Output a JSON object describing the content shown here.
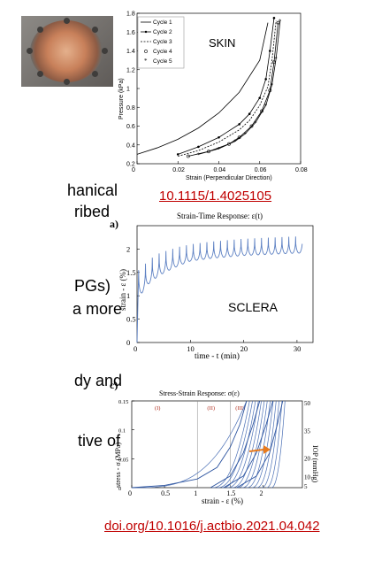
{
  "left_text": [
    "hanical",
    "ribed",
    "PGs)",
    "a more",
    "dy and",
    "tive of"
  ],
  "skin_chart": {
    "label": "SKIN",
    "xlabel": "Strain (Perpendicular Direction)",
    "ylabel": "Pressure (kPa)",
    "xticks": [
      "0",
      "0.02",
      "0.04",
      "0.06",
      "0.08"
    ],
    "yticks": [
      "0.2",
      "0.4",
      "0.6",
      "0.8",
      "1",
      "1.2",
      "1.4",
      "1.6",
      "1.8"
    ],
    "legend": [
      "Cycle 1",
      "Cycle 2",
      "Cycle 3",
      "Cycle 4",
      "Cycle 5"
    ],
    "doi": "10.1115/1.4025105"
  },
  "sclera_a": {
    "panel": "a)",
    "title": "Strain-Time Response: ε(t)",
    "label": "SCLERA",
    "ylabel": "strain - ε (%)",
    "xlabel": "time - t (min)",
    "xticks": [
      "0",
      "10",
      "20",
      "30"
    ],
    "yticks": [
      "0",
      "0.5",
      "1",
      "1.5",
      "2"
    ]
  },
  "sclera_c": {
    "panel": "c)",
    "title": "Stress-Strain Response: σ(ε)",
    "ylabel": "stress - σ (MPa)",
    "xlabel": "strain - ε (%)",
    "y2label": "IOP (mmHg)",
    "xticks": [
      "0",
      "0.5",
      "1",
      "1.5",
      "2"
    ],
    "yticks": [
      "0",
      "0.05",
      "0.1",
      "0.15"
    ],
    "y2ticks": [
      "5",
      "10",
      "20",
      "35",
      "50"
    ],
    "regions": [
      "(I)",
      "(II)",
      "(III)"
    ],
    "doi": "doi.org/10.1016/j.actbio.2021.04.042"
  },
  "chart_data": [
    {
      "type": "line",
      "xlim": [
        0,
        0.08
      ],
      "ylim": [
        0.2,
        1.8
      ],
      "series": [
        {
          "name": "Cycle 1",
          "x": [
            0,
            0.01,
            0.02,
            0.03,
            0.04,
            0.05,
            0.06,
            0.064
          ],
          "y": [
            0.3,
            0.37,
            0.46,
            0.58,
            0.74,
            0.96,
            1.3,
            1.7
          ]
        },
        {
          "name": "Cycle 2",
          "x": [
            0.02,
            0.03,
            0.04,
            0.05,
            0.055,
            0.06,
            0.063,
            0.065,
            0.067
          ],
          "y": [
            0.3,
            0.38,
            0.48,
            0.62,
            0.73,
            0.9,
            1.1,
            1.4,
            1.75
          ]
        },
        {
          "name": "Cycle 3",
          "x": [
            0.02,
            0.03,
            0.04,
            0.05,
            0.055,
            0.06,
            0.064,
            0.066,
            0.068
          ],
          "y": [
            0.28,
            0.34,
            0.43,
            0.56,
            0.66,
            0.82,
            1.02,
            1.3,
            1.72
          ]
        },
        {
          "name": "Cycle 4",
          "x": [
            0.025,
            0.035,
            0.045,
            0.05,
            0.056,
            0.061,
            0.065,
            0.067,
            0.069
          ],
          "y": [
            0.28,
            0.33,
            0.41,
            0.48,
            0.6,
            0.76,
            0.98,
            1.28,
            1.7
          ]
        },
        {
          "name": "Cycle 5",
          "x": [
            0.03,
            0.04,
            0.048,
            0.053,
            0.058,
            0.063,
            0.066,
            0.068,
            0.07
          ],
          "y": [
            0.3,
            0.36,
            0.44,
            0.52,
            0.64,
            0.82,
            1.04,
            1.32,
            1.72
          ]
        }
      ]
    },
    {
      "type": "line",
      "xlim": [
        0,
        33
      ],
      "ylim": [
        0,
        2.5
      ],
      "series": [
        {
          "name": "",
          "x": [
            0,
            0.3,
            1,
            2,
            4,
            6,
            8,
            10,
            12,
            14,
            16,
            18,
            20,
            22,
            24,
            26,
            28,
            30,
            31
          ],
          "y": [
            0,
            1.55,
            1.6,
            1.75,
            1.9,
            1.98,
            2.05,
            2.1,
            2.13,
            2.16,
            2.18,
            2.2,
            2.22,
            2.23,
            2.24,
            2.25,
            2.26,
            2.27,
            2.27
          ]
        }
      ]
    },
    {
      "type": "line",
      "xlim": [
        0,
        2.6
      ],
      "ylim": [
        0,
        0.15
      ],
      "series": [
        {
          "name": "",
          "x": [
            0,
            0.5,
            1.0,
            1.3,
            1.5,
            1.65,
            1.75
          ],
          "y": [
            0,
            0.004,
            0.015,
            0.035,
            0.07,
            0.11,
            0.15
          ]
        },
        {
          "name": "",
          "x": [
            1.2,
            1.5,
            1.7,
            1.85,
            1.95
          ],
          "y": [
            0,
            0.02,
            0.06,
            0.11,
            0.15
          ]
        },
        {
          "name": "",
          "x": [
            1.4,
            1.7,
            1.9,
            2.05,
            2.15
          ],
          "y": [
            0,
            0.02,
            0.06,
            0.11,
            0.15
          ]
        },
        {
          "name": "",
          "x": [
            1.6,
            1.9,
            2.1,
            2.22,
            2.3
          ],
          "y": [
            0,
            0.02,
            0.06,
            0.11,
            0.15
          ]
        }
      ]
    }
  ]
}
